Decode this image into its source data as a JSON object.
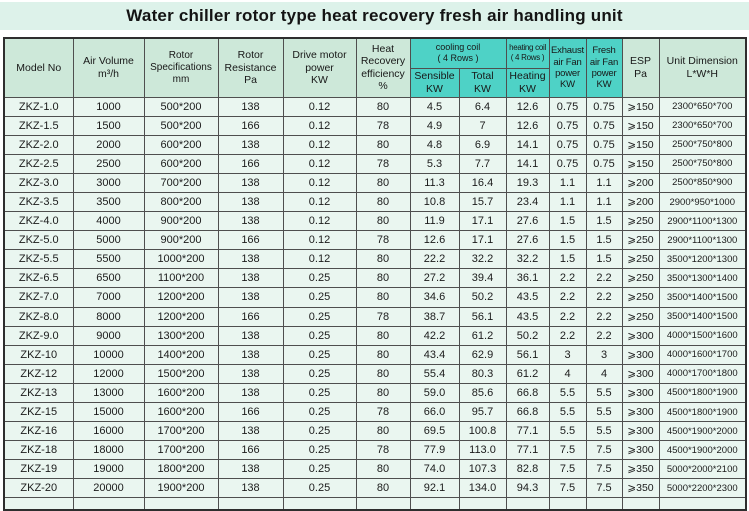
{
  "title": "Water chiller rotor type heat recovery fresh air handling unit",
  "colors": {
    "title_band": "#ddf2ea",
    "header_green": "#cde8d9",
    "header_cyan": "#4ed2c6",
    "row_bg": "#eaf6f0",
    "border": "#4f4f4f",
    "outer_border": "#2e2e2e"
  },
  "chart_data": {
    "type": "table",
    "title": "Water chiller rotor type heat recovery fresh air handling unit",
    "column_groups": [
      {
        "id": "cooling_coil",
        "label": "cooling coil\n( 4 Rows )",
        "spans": [
          "cooling_sensible",
          "cooling_total"
        ]
      },
      {
        "id": "heating_coil",
        "label": "heating coil\n( 4 Rows )",
        "spans": [
          "heating"
        ]
      }
    ],
    "columns": [
      {
        "id": "model",
        "label": "Model No"
      },
      {
        "id": "air-volume",
        "label": "Air Volume\nm³/h"
      },
      {
        "id": "rotor-spec",
        "label": "Rotor\nSpecifications\nmm"
      },
      {
        "id": "rotor-resistance",
        "label": "Rotor\nResistance\nPa"
      },
      {
        "id": "drive-power",
        "label": "Drive motor\npower\nKW"
      },
      {
        "id": "heat-recovery",
        "label": "Heat\nRecovery\nefficiency\n%"
      },
      {
        "id": "cooling-sensible",
        "label": "Sensible\nKW"
      },
      {
        "id": "cooling-total",
        "label": "Total\nKW"
      },
      {
        "id": "heating",
        "label": "Heating\nKW"
      },
      {
        "id": "exhaust-fan",
        "label": "Exhaust\nair Fan\npower\nKW"
      },
      {
        "id": "fresh-fan",
        "label": "Fresh\nair Fan\npower\nKW"
      },
      {
        "id": "esp",
        "label": "ESP\nPa"
      },
      {
        "id": "dimension",
        "label": "Unit Dimension\nL*W*H"
      }
    ],
    "rows": [
      [
        "ZKZ-1.0",
        "1000",
        "500*200",
        "138",
        "0.12",
        "80",
        "4.5",
        "6.4",
        "12.6",
        "0.75",
        "0.75",
        "⩾150",
        "2300*650*700"
      ],
      [
        "ZKZ-1.5",
        "1500",
        "500*200",
        "166",
        "0.12",
        "78",
        "4.9",
        "7",
        "12.6",
        "0.75",
        "0.75",
        "⩾150",
        "2300*650*700"
      ],
      [
        "ZKZ-2.0",
        "2000",
        "600*200",
        "138",
        "0.12",
        "80",
        "4.8",
        "6.9",
        "14.1",
        "0.75",
        "0.75",
        "⩾150",
        "2500*750*800"
      ],
      [
        "ZKZ-2.5",
        "2500",
        "600*200",
        "166",
        "0.12",
        "78",
        "5.3",
        "7.7",
        "14.1",
        "0.75",
        "0.75",
        "⩾150",
        "2500*750*800"
      ],
      [
        "ZKZ-3.0",
        "3000",
        "700*200",
        "138",
        "0.12",
        "80",
        "11.3",
        "16.4",
        "19.3",
        "1.1",
        "1.1",
        "⩾200",
        "2500*850*900"
      ],
      [
        "ZKZ-3.5",
        "3500",
        "800*200",
        "138",
        "0.12",
        "80",
        "10.8",
        "15.7",
        "23.4",
        "1.1",
        "1.1",
        "⩾200",
        "2900*950*1000"
      ],
      [
        "ZKZ-4.0",
        "4000",
        "900*200",
        "138",
        "0.12",
        "80",
        "11.9",
        "17.1",
        "27.6",
        "1.5",
        "1.5",
        "⩾250",
        "2900*1100*1300"
      ],
      [
        "ZKZ-5.0",
        "5000",
        "900*200",
        "166",
        "0.12",
        "78",
        "12.6",
        "17.1",
        "27.6",
        "1.5",
        "1.5",
        "⩾250",
        "2900*1100*1300"
      ],
      [
        "ZKZ-5.5",
        "5500",
        "1000*200",
        "138",
        "0.12",
        "80",
        "22.2",
        "32.2",
        "32.2",
        "1.5",
        "1.5",
        "⩾250",
        "3500*1200*1300"
      ],
      [
        "ZKZ-6.5",
        "6500",
        "1100*200",
        "138",
        "0.25",
        "80",
        "27.2",
        "39.4",
        "36.1",
        "2.2",
        "2.2",
        "⩾250",
        "3500*1300*1400"
      ],
      [
        "ZKZ-7.0",
        "7000",
        "1200*200",
        "138",
        "0.25",
        "80",
        "34.6",
        "50.2",
        "43.5",
        "2.2",
        "2.2",
        "⩾250",
        "3500*1400*1500"
      ],
      [
        "ZKZ-8.0",
        "8000",
        "1200*200",
        "166",
        "0.25",
        "78",
        "38.7",
        "56.1",
        "43.5",
        "2.2",
        "2.2",
        "⩾250",
        "3500*1400*1500"
      ],
      [
        "ZKZ-9.0",
        "9000",
        "1300*200",
        "138",
        "0.25",
        "80",
        "42.2",
        "61.2",
        "50.2",
        "2.2",
        "2.2",
        "⩾300",
        "4000*1500*1600"
      ],
      [
        "ZKZ-10",
        "10000",
        "1400*200",
        "138",
        "0.25",
        "80",
        "43.4",
        "62.9",
        "56.1",
        "3",
        "3",
        "⩾300",
        "4000*1600*1700"
      ],
      [
        "ZKZ-12",
        "12000",
        "1500*200",
        "138",
        "0.25",
        "80",
        "55.4",
        "80.3",
        "61.2",
        "4",
        "4",
        "⩾300",
        "4000*1700*1800"
      ],
      [
        "ZKZ-13",
        "13000",
        "1600*200",
        "138",
        "0.25",
        "80",
        "59.0",
        "85.6",
        "66.8",
        "5.5",
        "5.5",
        "⩾300",
        "4500*1800*1900"
      ],
      [
        "ZKZ-15",
        "15000",
        "1600*200",
        "166",
        "0.25",
        "78",
        "66.0",
        "95.7",
        "66.8",
        "5.5",
        "5.5",
        "⩾300",
        "4500*1800*1900"
      ],
      [
        "ZKZ-16",
        "16000",
        "1700*200",
        "138",
        "0.25",
        "80",
        "69.5",
        "100.8",
        "77.1",
        "5.5",
        "5.5",
        "⩾300",
        "4500*1900*2000"
      ],
      [
        "ZKZ-18",
        "18000",
        "1700*200",
        "166",
        "0.25",
        "78",
        "77.9",
        "113.0",
        "77.1",
        "7.5",
        "7.5",
        "⩾300",
        "4500*1900*2000"
      ],
      [
        "ZKZ-19",
        "19000",
        "1800*200",
        "138",
        "0.25",
        "80",
        "74.0",
        "107.3",
        "82.8",
        "7.5",
        "7.5",
        "⩾350",
        "5000*2000*2100"
      ],
      [
        "ZKZ-20",
        "20000",
        "1900*200",
        "138",
        "0.25",
        "80",
        "92.1",
        "134.0",
        "94.3",
        "7.5",
        "7.5",
        "⩾350",
        "5000*2200*2300"
      ]
    ]
  }
}
